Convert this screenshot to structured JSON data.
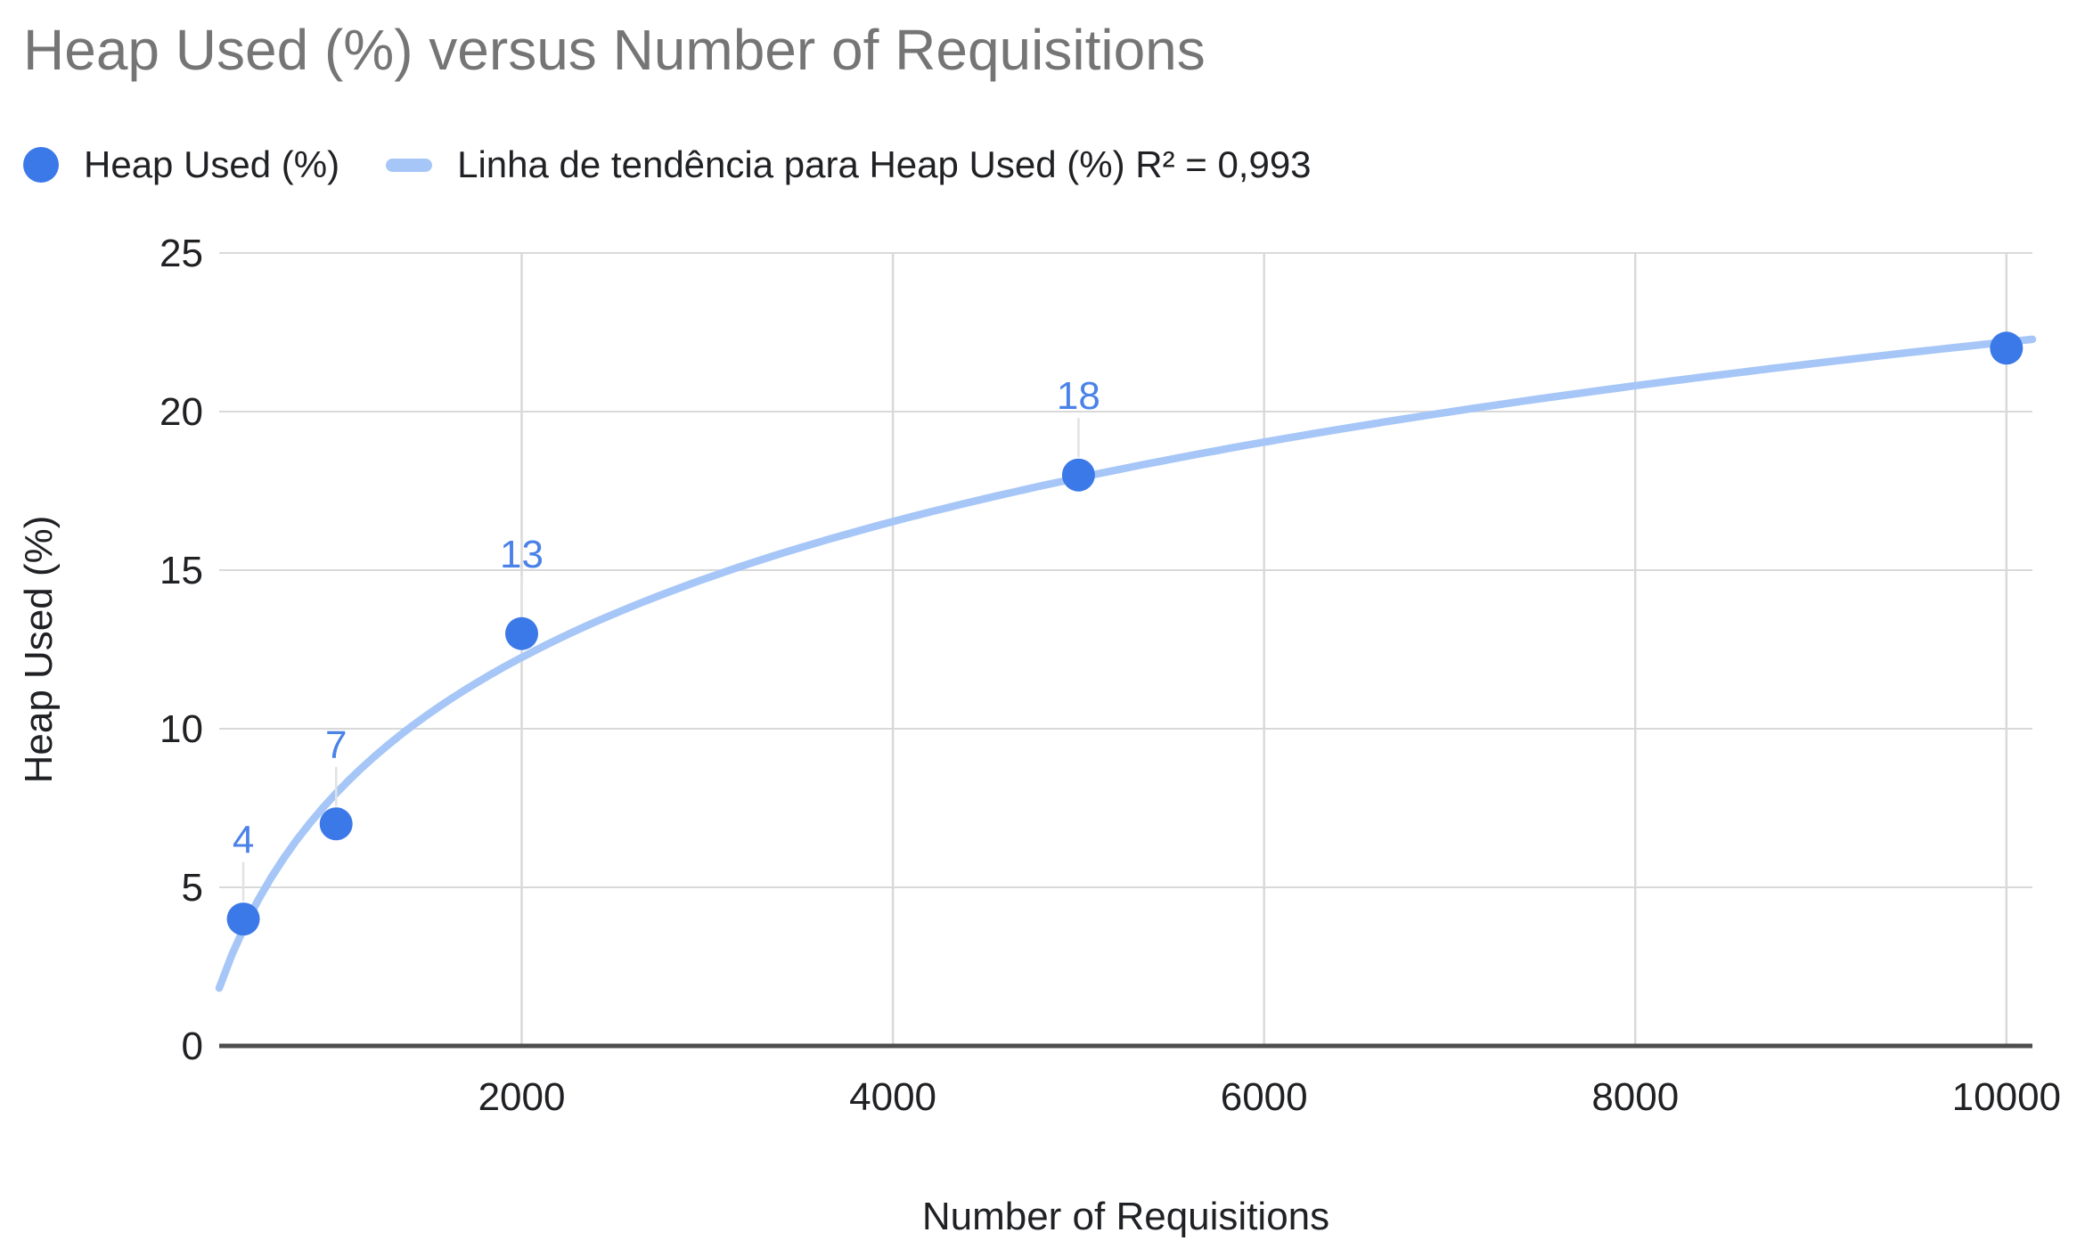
{
  "colors": {
    "point": "#3c79e8",
    "point_label": "#4a82e8",
    "trendline": "#a6c6f7",
    "gridline": "#d9d9d9",
    "baseline": "#4d4d4d",
    "leader": "#e2e2e2",
    "tick_label": "#202124",
    "axis_title": "#202124",
    "title": "#757575",
    "background": "#ffffff"
  },
  "legend": {
    "items": [
      {
        "label": "Heap Used (%)",
        "marker": "circle"
      },
      {
        "label": "Linha de tendência para Heap Used (%) R² = 0,993",
        "marker": "line"
      }
    ]
  },
  "chart_data": {
    "type": "scatter",
    "title": "Heap Used (%) versus Number of Requisitions",
    "xlabel": "Number of Requisitions",
    "ylabel": "Heap Used (%)",
    "series": [
      {
        "name": "Heap Used (%)",
        "x": [
          500,
          1000,
          2000,
          5000,
          10000
        ],
        "y": [
          4,
          7,
          13,
          18,
          22
        ],
        "point_labels": [
          "4",
          "7",
          "13",
          "18",
          ""
        ]
      }
    ],
    "trendline": {
      "for_series": "Heap Used (%)",
      "type": "logarithmic",
      "r2": "0,993",
      "legend_label": "Linha de tendência para Heap Used (%) R² = 0,993"
    },
    "x_ticks": [
      2000,
      4000,
      6000,
      8000,
      10000
    ],
    "x_tick_labels": [
      "2000",
      "4000",
      "6000",
      "8000",
      "10000"
    ],
    "y_ticks": [
      0,
      5,
      10,
      15,
      20,
      25
    ],
    "y_tick_labels": [
      "0",
      "5",
      "10",
      "15",
      "20",
      "25"
    ],
    "xlim": [
      370,
      10140
    ],
    "ylim": [
      0,
      25
    ],
    "grid": true,
    "legend_position": "top"
  }
}
